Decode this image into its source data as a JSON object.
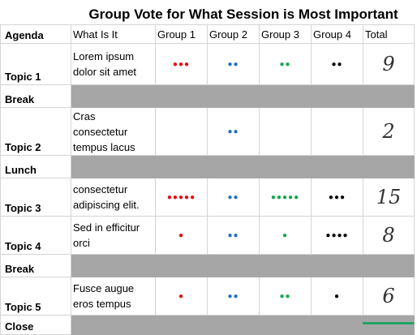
{
  "title": "Group Vote for What Session is Most Important",
  "headers": {
    "agenda": "Agenda",
    "what": "What Is It",
    "group1": "Group 1",
    "group2": "Group 2",
    "group3": "Group 3",
    "group4": "Group 4",
    "total": "Total"
  },
  "dot_glyph": "●",
  "colors": {
    "group1": "#e8000b",
    "group2": "#1f6fc5",
    "group3": "#12a84a",
    "group4": "#000000",
    "break_fill": "#a6a6a6"
  },
  "rows": [
    {
      "agenda": "Topic 1",
      "what": [
        "Lorem ipsum",
        "dolor sit amet"
      ],
      "votes": [
        3,
        2,
        2,
        2
      ],
      "total": "9"
    },
    {
      "agenda": "Break"
    },
    {
      "agenda": "Topic 2",
      "what": [
        "Cras",
        "consectetur",
        "tempus lacus"
      ],
      "votes": [
        0,
        2,
        0,
        0
      ],
      "total": "2"
    },
    {
      "agenda": "Lunch"
    },
    {
      "agenda": "Topic 3",
      "what": [
        "consectetur",
        "adipiscing elit."
      ],
      "votes": [
        5,
        2,
        5,
        3
      ],
      "total": "15"
    },
    {
      "agenda": "Topic 4",
      "what": [
        "Sed in efficitur",
        "orci"
      ],
      "votes": [
        1,
        2,
        1,
        4
      ],
      "total": "8"
    },
    {
      "agenda": "Break"
    },
    {
      "agenda": "Topic 5",
      "what": [
        "Fusce augue",
        "eros tempus"
      ],
      "votes": [
        1,
        2,
        2,
        1
      ],
      "total": "6"
    },
    {
      "agenda": "Close"
    }
  ]
}
